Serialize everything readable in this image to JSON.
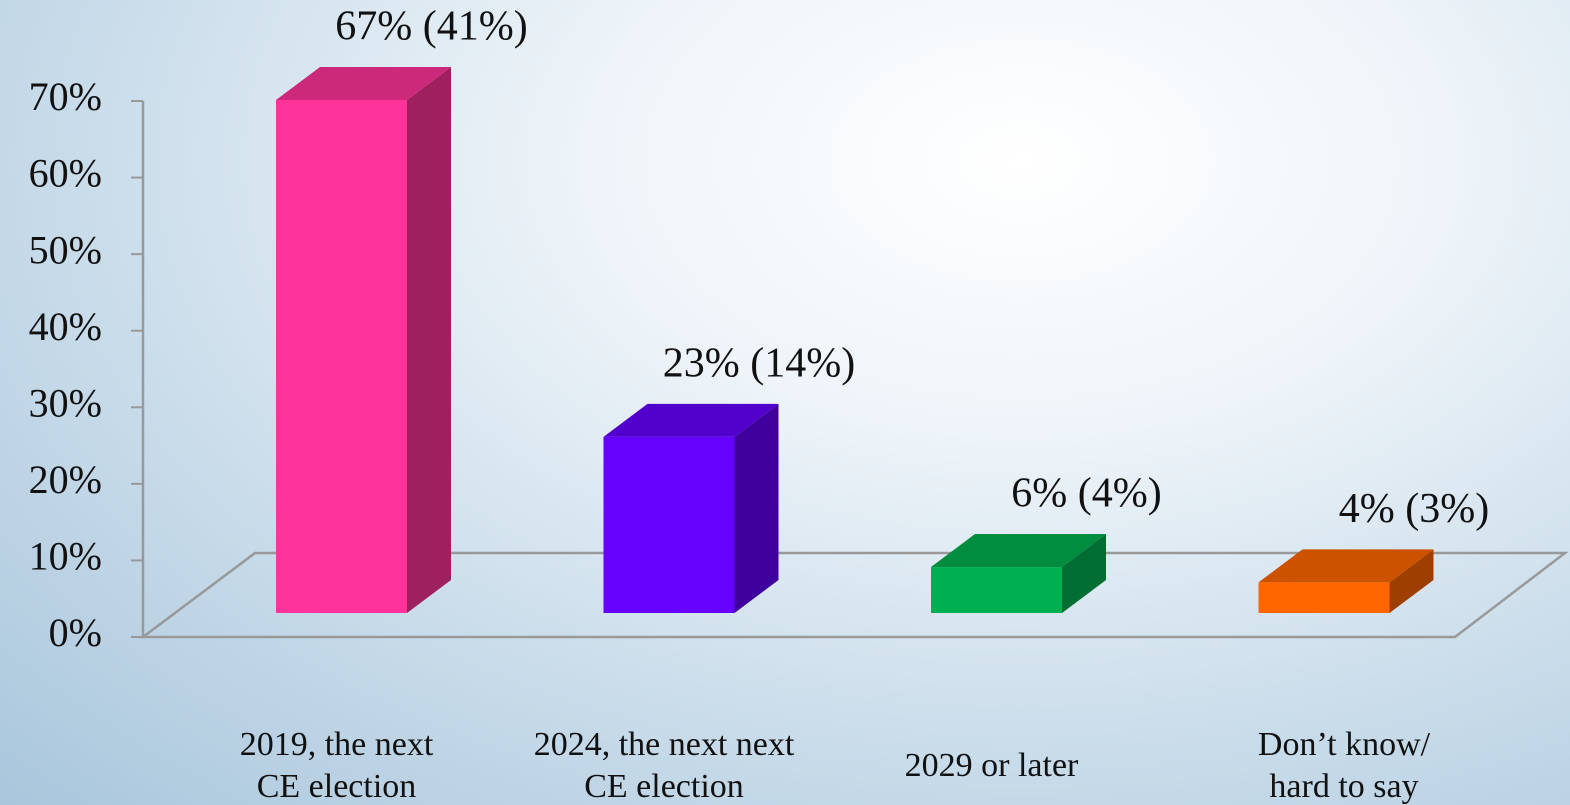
{
  "chart_data": {
    "type": "bar3d",
    "categories": [
      "2019, the next\nCE election",
      "2024, the next next\nCE election",
      "2029 or later",
      "Don’t know/\nhard to say"
    ],
    "values": [
      67,
      23,
      6,
      4
    ],
    "value_labels": [
      "67% (41%)",
      "23% (14%)",
      "6% (4%)",
      "4% (3%)"
    ],
    "colors": [
      "#ff3399",
      "#6600ff",
      "#00b050",
      "#ff6600"
    ],
    "ylim": [
      0,
      70
    ],
    "yticks": [
      {
        "value": 0,
        "label": "0%"
      },
      {
        "value": 10,
        "label": "10%"
      },
      {
        "value": 20,
        "label": "20%"
      },
      {
        "value": 30,
        "label": "30%"
      },
      {
        "value": 40,
        "label": "40%"
      },
      {
        "value": 50,
        "label": "50%"
      },
      {
        "value": 60,
        "label": "60%"
      },
      {
        "value": 70,
        "label": "70%"
      }
    ]
  }
}
